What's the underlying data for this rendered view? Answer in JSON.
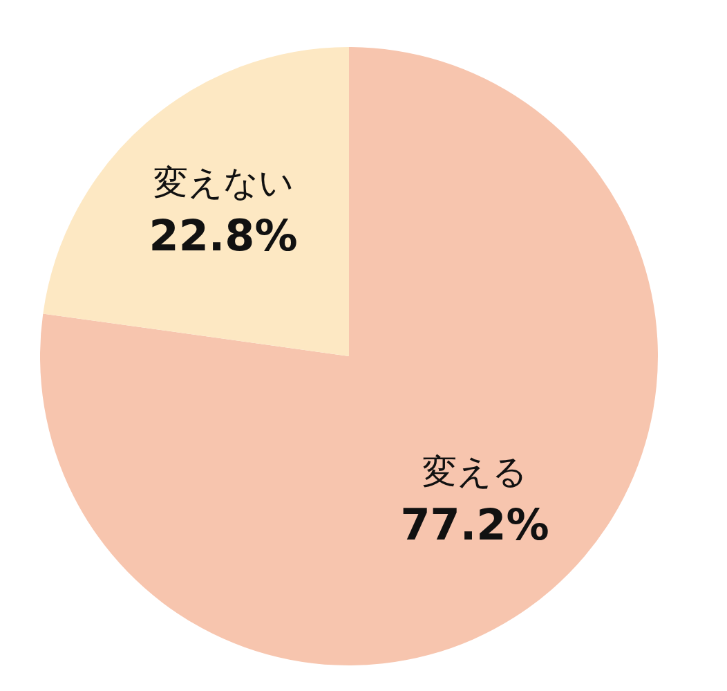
{
  "chart_data": {
    "type": "pie",
    "categories": [
      "変える",
      "変えない"
    ],
    "values": [
      77.2,
      22.8
    ],
    "colors": [
      "#f7c5ae",
      "#fde8c3"
    ],
    "value_labels": [
      "77.2%",
      "22.8%"
    ],
    "legend": false
  }
}
